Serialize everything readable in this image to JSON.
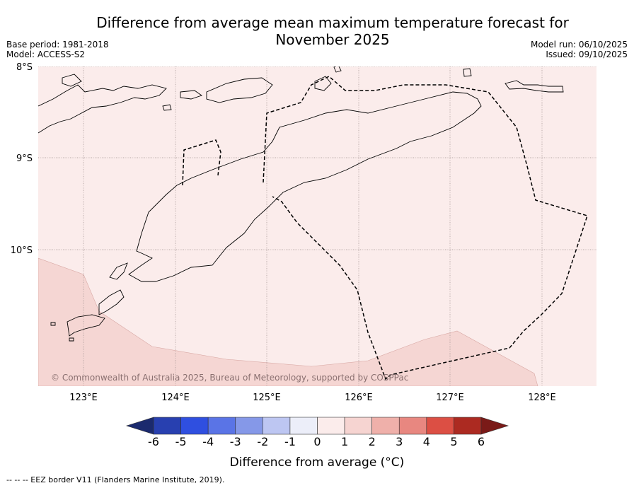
{
  "title_line1": "Difference from average mean maximum temperature forecast for",
  "title_line2": "November 2025",
  "base_period": "Base period: 1981-2018",
  "model": "Model: ACCESS-S2",
  "model_run": "Model run: 06/10/2025",
  "issued": "Issued: 09/10/2025",
  "copyright": "© Commonwealth of Australia 2025, Bureau of Meteorology, supported by COSPPac",
  "footnote": "--  --  -- EEZ border V11 (Flanders Marine Institute, 2019).",
  "lat_labels": [
    "8°S",
    "9°S",
    "10°S"
  ],
  "lon_labels": [
    "123°E",
    "124°E",
    "125°E",
    "126°E",
    "127°E",
    "128°E"
  ],
  "colorbar": {
    "label": "Difference from average (°C)",
    "ticks": [
      "-6",
      "-5",
      "-4",
      "-3",
      "-2",
      "-1",
      "0",
      "1",
      "2",
      "3",
      "4",
      "5",
      "6"
    ],
    "colors": [
      "#1b2a6e",
      "#2840b0",
      "#2f4fe0",
      "#5a74e6",
      "#8598e8",
      "#bdc6f2",
      "#eceef9",
      "#fbeceb",
      "#f6d4d1",
      "#efb0aa",
      "#e88780",
      "#dc4f44",
      "#ac2a21",
      "#7a1a18"
    ]
  },
  "chart_data": {
    "type": "map",
    "lat_range": [
      "8°S",
      "11.5°S"
    ],
    "lon_range": [
      "122.5°E",
      "128.6°E"
    ],
    "regions": [
      {
        "category": "0 to 1 °C",
        "color": "#fbeceb",
        "extent": "most of the map"
      },
      {
        "category": "1 to 2 °C",
        "color": "#f6d4d1",
        "extent": "southern strip and south-west corner"
      }
    ]
  }
}
